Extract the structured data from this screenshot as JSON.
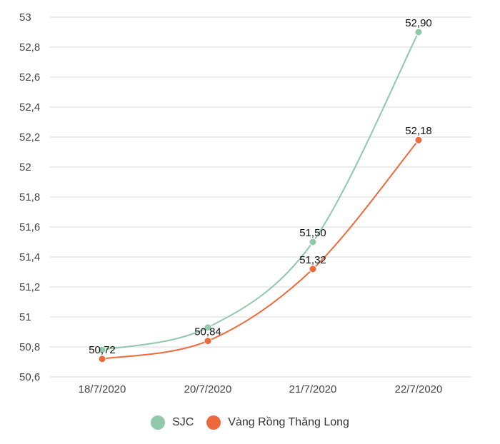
{
  "chart_data": {
    "type": "line",
    "title": "",
    "xlabel": "",
    "ylabel": "",
    "categories": [
      "18/7/2020",
      "20/7/2020",
      "21/7/2020",
      "22/7/2020"
    ],
    "series": [
      {
        "name": "SJC",
        "color": "#8fc9a9",
        "values": [
          50.78,
          50.93,
          51.5,
          52.9
        ],
        "labels": [
          "",
          "",
          "51,50",
          "52,90"
        ]
      },
      {
        "name": "Vàng Rồng Thăng Long",
        "color": "#ee6a3a",
        "values": [
          50.72,
          50.84,
          51.32,
          52.18
        ],
        "labels": [
          "50,72",
          "50,84",
          "51,32",
          "52,18"
        ]
      }
    ],
    "ylim": [
      50.6,
      53
    ],
    "yticks": [
      "53",
      "52,8",
      "52,6",
      "52,4",
      "52,2",
      "52",
      "51,8",
      "51,6",
      "51,4",
      "51,2",
      "51",
      "50,8",
      "50,6"
    ],
    "grid": true,
    "legend_position": "bottom"
  }
}
